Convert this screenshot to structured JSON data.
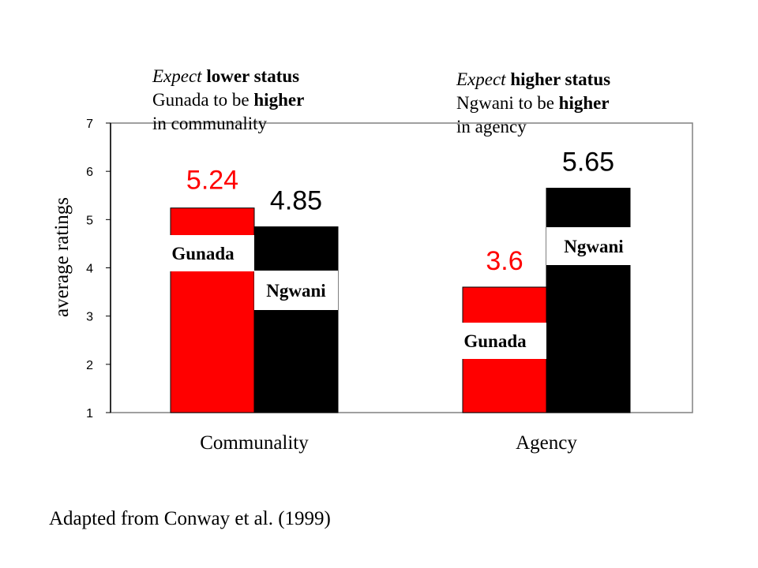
{
  "chart_data": {
    "type": "bar",
    "categories": [
      "Communality",
      "Agency"
    ],
    "series": [
      {
        "name": "Gunada",
        "values": [
          5.24,
          3.6
        ],
        "color": "#ff0000"
      },
      {
        "name": "Ngwani",
        "values": [
          4.85,
          5.65
        ],
        "color": "#000000"
      }
    ],
    "data_labels": [
      "5.24",
      "4.85",
      "3.6",
      "5.65"
    ],
    "data_label_colors": [
      "#ff0000",
      "#000000",
      "#ff0000",
      "#000000"
    ],
    "yticks": [
      "1",
      "2",
      "3",
      "4",
      "5",
      "6",
      "7"
    ],
    "ylim": [
      1,
      7
    ],
    "ylabel": "average ratings",
    "xlabel": "",
    "grid": false
  },
  "annotations": {
    "left_note": {
      "l1_a": "Expect",
      "l1_b": " lower status",
      "l2_a": "Gunada to be ",
      "l2_b": "higher",
      "l3": "in communality"
    },
    "right_note": {
      "l1_a": "Expect",
      "l1_b": " higher status",
      "l2_a": "Ngwani to be ",
      "l2_b": "higher",
      "l3": "in agency"
    }
  },
  "source": "Adapted from Conway et al. (1999)"
}
